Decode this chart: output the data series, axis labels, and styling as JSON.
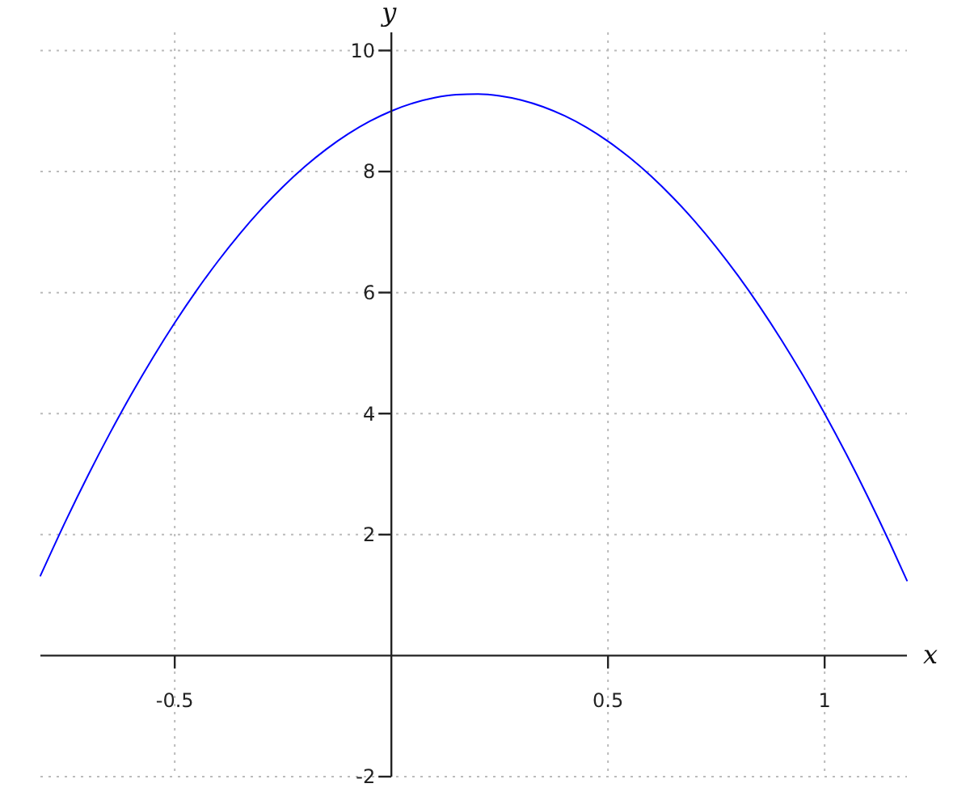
{
  "chart_data": {
    "type": "line",
    "xlabel": "x",
    "ylabel": "y",
    "x": [
      -0.81,
      -0.75,
      -0.7,
      -0.65,
      -0.6,
      -0.55,
      -0.5,
      -0.45,
      -0.4,
      -0.35,
      -0.3,
      -0.25,
      -0.2,
      -0.15,
      -0.1,
      -0.05,
      0,
      0.05,
      0.1,
      0.15,
      0.2,
      0.25,
      0.3,
      0.35,
      0.4,
      0.45,
      0.5,
      0.55,
      0.6,
      0.65,
      0.7,
      0.75,
      0.8,
      0.85,
      0.9,
      0.95,
      1,
      1.05,
      1.1,
      1.15,
      1.19
    ],
    "series": [
      {
        "color": "#0000ff",
        "values": [
          1.32,
          2.25,
          2.98,
          3.67,
          4.32,
          4.93,
          5.5,
          6.03,
          6.52,
          6.97,
          7.38,
          7.75,
          8.08,
          8.37,
          8.62,
          8.83,
          9,
          9.13,
          9.22,
          9.27,
          9.28,
          9.25,
          9.18,
          9.07,
          8.92,
          8.73,
          8.5,
          8.23,
          7.92,
          7.57,
          7.18,
          6.75,
          6.28,
          5.77,
          5.22,
          4.63,
          4,
          3.33,
          2.62,
          1.87,
          1.24
        ]
      }
    ],
    "xlim": [
      -0.81,
      1.19
    ],
    "ylim": [
      -2,
      10.3
    ],
    "xticks": [
      -0.5,
      0.5,
      1
    ],
    "yticks": [
      -2,
      2,
      4,
      6,
      8,
      10
    ],
    "grid": true
  }
}
